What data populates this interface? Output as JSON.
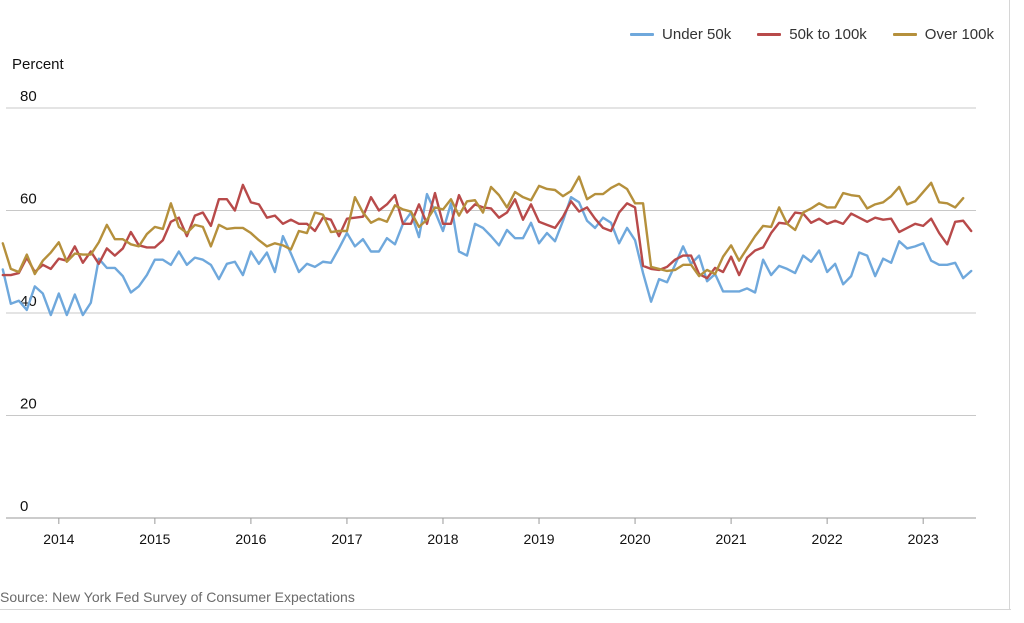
{
  "chart_data": {
    "type": "line",
    "ylabel": "Percent",
    "ylim": [
      0,
      80
    ],
    "yticks": [
      0,
      20,
      40,
      60,
      80
    ],
    "xlim": [
      2013.45,
      2023.55
    ],
    "xticks": [
      "2014",
      "2015",
      "2016",
      "2017",
      "2018",
      "2019",
      "2020",
      "2021",
      "2022",
      "2023"
    ],
    "x_start": "2013-06",
    "x_frequency": "monthly",
    "grid": "horizontal",
    "legend_position": "top-right",
    "series": [
      {
        "name": "Under 50k",
        "color": "#6fa8dc",
        "values": [
          48.5,
          41.8,
          42.4,
          40.6,
          45.2,
          43.8,
          39.6,
          43.8,
          39.6,
          43.6,
          39.6,
          42.0,
          50.6,
          48.8,
          48.8,
          47.2,
          44.0,
          45.2,
          47.4,
          50.4,
          50.4,
          49.4,
          52.0,
          49.4,
          50.8,
          50.4,
          49.4,
          46.6,
          49.6,
          50.0,
          47.4,
          52.0,
          49.6,
          51.8,
          48.0,
          55.0,
          51.6,
          48.0,
          49.6,
          49.0,
          50.0,
          49.8,
          52.6,
          55.6,
          53.0,
          54.4,
          52.0,
          52.0,
          54.6,
          53.4,
          57.4,
          59.6,
          54.8,
          63.2,
          59.8,
          56.0,
          61.4,
          52.0,
          51.2,
          57.4,
          56.6,
          55.0,
          53.2,
          56.2,
          54.6,
          54.6,
          57.6,
          53.6,
          55.6,
          54.0,
          58.0,
          62.6,
          61.6,
          58.0,
          56.6,
          58.6,
          57.6,
          53.6,
          56.6,
          54.2,
          47.8,
          42.2,
          46.6,
          46.0,
          49.4,
          53.0,
          49.6,
          51.2,
          46.2,
          47.6,
          44.2,
          44.2,
          44.2,
          44.8,
          44.0,
          50.4,
          47.4,
          49.2,
          48.6,
          47.8,
          51.2,
          50.0,
          52.2,
          48.0,
          49.6,
          45.6,
          47.2,
          51.8,
          51.2,
          47.2,
          50.6,
          49.8,
          54.0,
          52.6,
          53.0,
          53.6,
          50.2,
          49.4,
          49.4,
          49.8,
          46.8,
          48.2
        ]
      },
      {
        "name": "50k to 100k",
        "color": "#b84a4a",
        "values": [
          47.4,
          47.4,
          47.8,
          50.8,
          48.0,
          49.4,
          48.6,
          50.6,
          50.2,
          53.0,
          49.8,
          52.0,
          49.6,
          52.6,
          51.2,
          52.6,
          55.8,
          53.2,
          52.8,
          52.8,
          54.2,
          57.8,
          58.6,
          55.0,
          59.0,
          59.6,
          57.0,
          62.2,
          62.2,
          60.0,
          65.0,
          61.6,
          61.2,
          58.6,
          59.0,
          57.4,
          58.2,
          57.4,
          57.4,
          56.0,
          58.6,
          58.2,
          55.0,
          58.4,
          58.6,
          58.8,
          62.6,
          60.0,
          61.2,
          63.0,
          57.4,
          57.4,
          61.2,
          57.4,
          63.4,
          57.4,
          57.4,
          63.0,
          59.6,
          61.2,
          60.6,
          60.4,
          58.6,
          59.6,
          62.2,
          58.2,
          61.2,
          57.8,
          57.2,
          56.6,
          58.8,
          61.8,
          59.8,
          60.6,
          58.4,
          56.6,
          56.0,
          59.6,
          61.4,
          60.6,
          49.2,
          48.6,
          48.4,
          49.0,
          50.4,
          51.2,
          51.2,
          47.6,
          46.8,
          48.8,
          48.0,
          51.0,
          47.4,
          50.8,
          52.2,
          52.8,
          55.6,
          57.6,
          57.4,
          59.6,
          59.4,
          57.6,
          58.4,
          57.4,
          58.0,
          57.4,
          59.4,
          58.6,
          57.8,
          58.6,
          58.2,
          58.4,
          55.8,
          56.6,
          57.4,
          57.0,
          58.4,
          55.6,
          53.4,
          57.8,
          58.0,
          56.0
        ]
      },
      {
        "name": "Over 100k",
        "color": "#b5903c",
        "values": [
          53.6,
          48.6,
          48.0,
          51.4,
          47.6,
          50.2,
          51.8,
          53.8,
          50.0,
          51.6,
          51.4,
          51.4,
          53.8,
          57.2,
          54.4,
          54.4,
          53.4,
          53.0,
          55.4,
          56.8,
          56.4,
          61.4,
          56.8,
          55.6,
          57.2,
          56.8,
          53.0,
          57.2,
          56.4,
          56.6,
          56.6,
          55.6,
          54.2,
          53.0,
          53.6,
          53.2,
          52.4,
          56.0,
          55.6,
          59.6,
          59.2,
          55.8,
          56.0,
          56.0,
          62.6,
          59.6,
          57.6,
          58.4,
          57.8,
          61.0,
          60.2,
          59.8,
          56.8,
          58.2,
          60.6,
          60.2,
          62.2,
          59.0,
          61.8,
          62.0,
          59.6,
          64.6,
          63.0,
          60.6,
          63.6,
          62.6,
          62.0,
          64.8,
          64.2,
          64.0,
          62.8,
          63.8,
          66.6,
          62.2,
          63.2,
          63.2,
          64.4,
          65.2,
          64.2,
          61.4,
          61.4,
          49.0,
          48.6,
          48.2,
          48.4,
          49.4,
          49.4,
          47.2,
          48.4,
          47.6,
          51.0,
          53.2,
          50.2,
          52.6,
          55.0,
          57.0,
          56.8,
          60.6,
          57.4,
          56.2,
          59.6,
          60.4,
          61.4,
          60.6,
          60.6,
          63.4,
          63.0,
          62.8,
          60.4,
          61.2,
          61.6,
          62.8,
          64.6,
          61.2,
          61.8,
          63.6,
          65.4,
          61.6,
          61.4,
          60.6,
          62.4
        ]
      }
    ]
  },
  "source_note": "Source: New York Fed Survey of Consumer Expectations"
}
